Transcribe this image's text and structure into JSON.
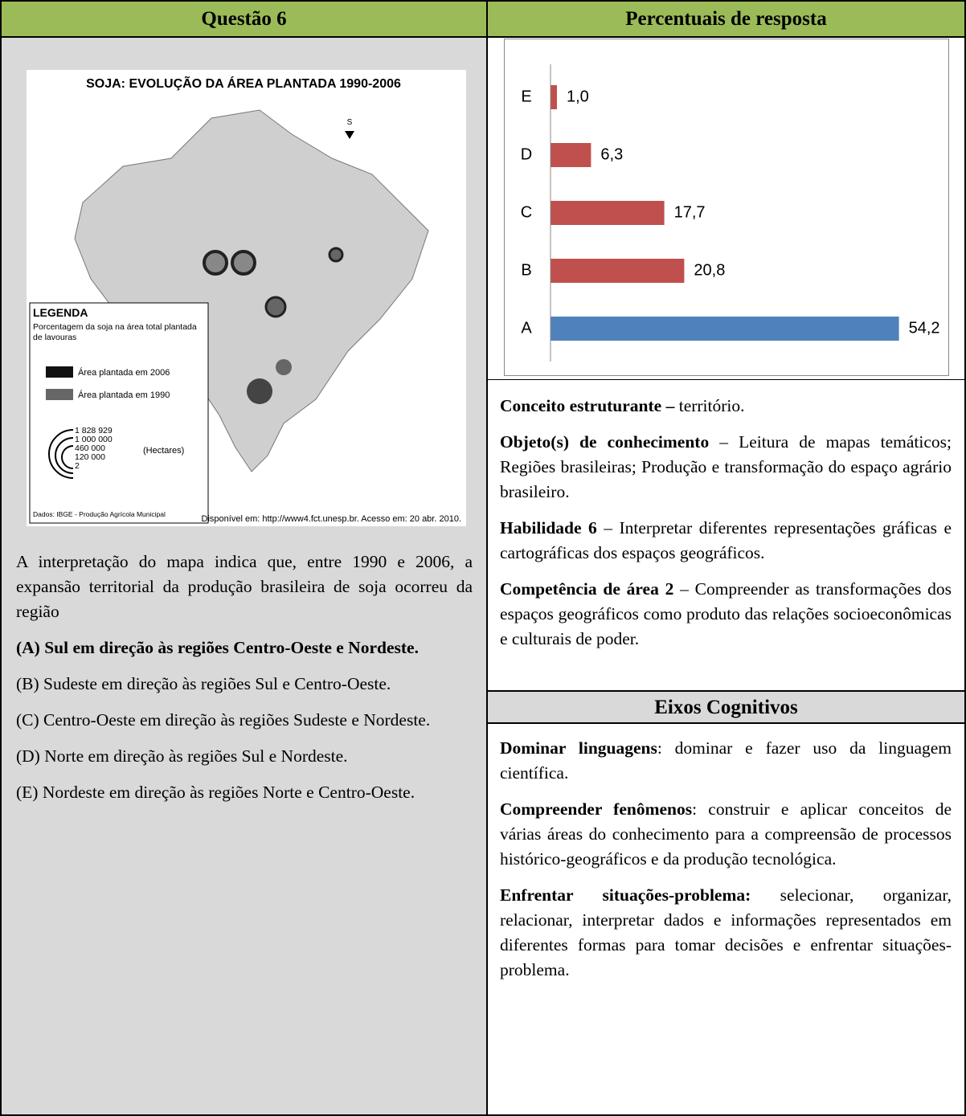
{
  "left": {
    "header": "Questão 6",
    "map": {
      "title": "SOJA: EVOLUÇÃO DA ÁREA PLANTADA 1990-2006",
      "north": "S",
      "legend_title": "LEGENDA",
      "legend_caption": "Porcentagem da soja na área total plantada de lavouras",
      "legend_2006": "Área plantada em 2006",
      "legend_1990": "Área plantada em 1990",
      "sizes": [
        "1 828 929",
        "1 000 000",
        "460 000",
        "120 000",
        "2"
      ],
      "sizes_unit": "(Hectares)",
      "data_source": "Dados: IBGE - Produção Agrícola Municipal",
      "source": "Disponível em: http://www4.fct.unesp.br. Acesso em: 20 abr. 2010."
    },
    "question": "A interpretação do mapa indica que, entre 1990 e 2006, a expansão territorial da produção brasileira de soja ocorreu da região",
    "options": [
      "(A) Sul em direção às regiões Centro-Oeste e Nordeste.",
      "(B) Sudeste em direção às regiões Sul e Centro-Oeste.",
      "(C) Centro-Oeste em direção às regiões Sudeste e Nordeste.",
      "(D) Norte em direção às regiões Sul e Nordeste.",
      "(E) Nordeste em direção às regiões Norte e Centro-Oeste."
    ]
  },
  "right": {
    "header": "Percentuais de resposta",
    "items": [
      {
        "label": "Conceito estruturante –",
        "text": " território."
      },
      {
        "label": "Objeto(s) de conhecimento",
        "text": " – Leitura de mapas temáticos; Regiões brasileiras; Produção e transformação do espaço agrário brasileiro."
      },
      {
        "label": "Habilidade 6",
        "text": " – Interpretar diferentes representações gráficas e cartográficas dos espaços geográficos."
      },
      {
        "label": "Competência de área 2",
        "text": " – Compreender as transformações dos espaços geográficos como produto das relações socioeconômicas e culturais de poder."
      }
    ],
    "axes_header": "Eixos Cognitivos",
    "axes": [
      {
        "label": "Dominar linguagens",
        "text": ": dominar e fazer uso da linguagem científica."
      },
      {
        "label": "Compreender fenômenos",
        "text": ": construir e aplicar conceitos de várias áreas do conhecimento para a compreensão de processos histórico-geográficos e da produção tecnológica."
      },
      {
        "label": "Enfrentar situações-problema:",
        "text": " selecionar, organizar, relacionar, interpretar dados e informações representados em diferentes formas para tomar decisões e enfrentar situações-problema."
      }
    ]
  },
  "chart_data": {
    "type": "barh",
    "categories": [
      "E",
      "D",
      "C",
      "B",
      "A"
    ],
    "values": [
      1.0,
      6.3,
      17.7,
      20.8,
      54.2
    ],
    "value_labels": [
      "1,0",
      "6,3",
      "17,7",
      "20,8",
      "54,2"
    ],
    "colors": [
      "#c0504d",
      "#c0504d",
      "#c0504d",
      "#c0504d",
      "#4f81bd"
    ],
    "xlim": [
      0,
      60
    ]
  }
}
